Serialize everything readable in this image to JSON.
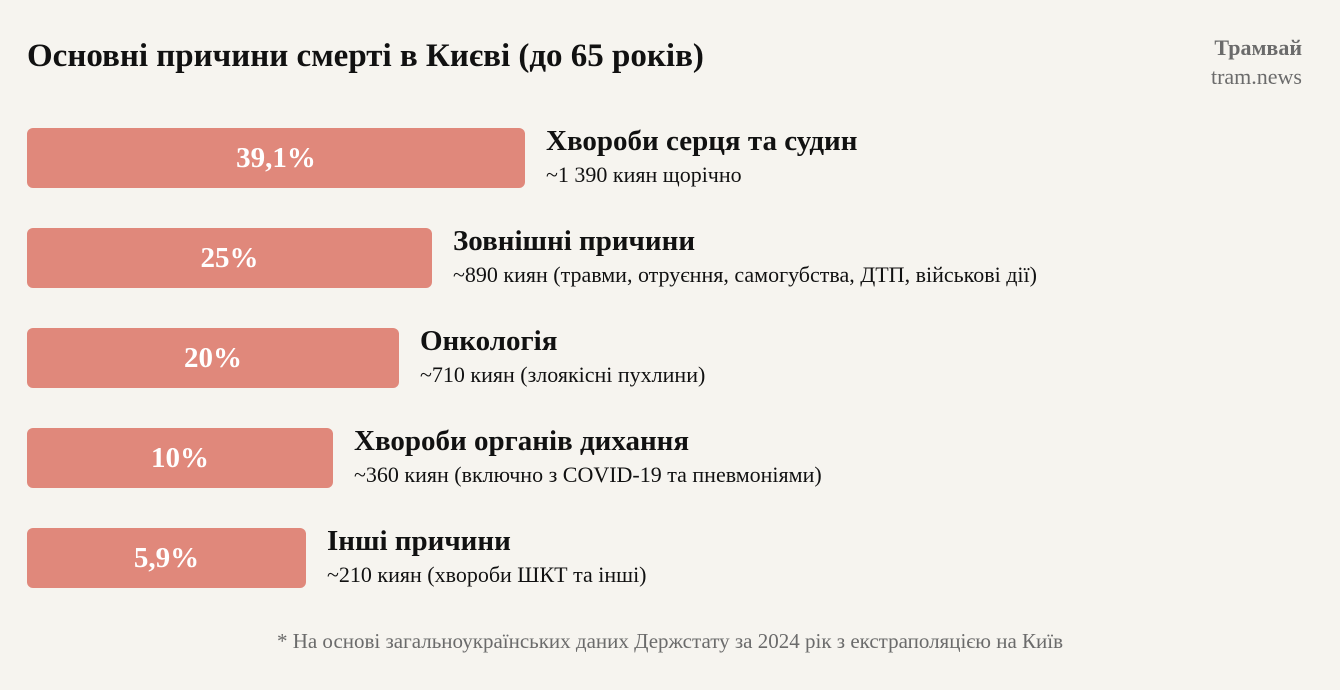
{
  "title": "Основні причини смерті в Києві (до 65 років)",
  "brand": {
    "name": "Трамвай",
    "url": "tram.news"
  },
  "colors": {
    "bar": "#e0887b",
    "background": "#f6f4ef",
    "text": "#111111",
    "muted": "#6b6b6b"
  },
  "chart_data": {
    "type": "bar",
    "orientation": "horizontal",
    "title": "Основні причини смерті в Києві (до 65 років)",
    "categories": [
      "Хвороби серця та судин",
      "Зовнішні причини",
      "Онкологія",
      "Хвороби органів дихання",
      "Інші причини"
    ],
    "values": [
      39.1,
      25,
      20,
      10,
      5.9
    ],
    "value_labels": [
      "39,1%",
      "25%",
      "20%",
      "10%",
      "5,9%"
    ],
    "subtitles": [
      "~1 390 киян щорічно",
      "~890 киян (травми, отруєння, самогубства, ДТП, військові дії)",
      "~710 киян (злоякісні пухлини)",
      "~360 киян (включно з COVID-19 та пневмоніями)",
      "~210 киян (хвороби ШКТ та інші)"
    ],
    "unit": "%",
    "xlim": [
      0,
      39.1
    ],
    "grid": false,
    "legend": "none"
  },
  "footnote": "* На основі загальноукраїнських даних Держстату за 2024 рік з екстраполяцією на Київ"
}
